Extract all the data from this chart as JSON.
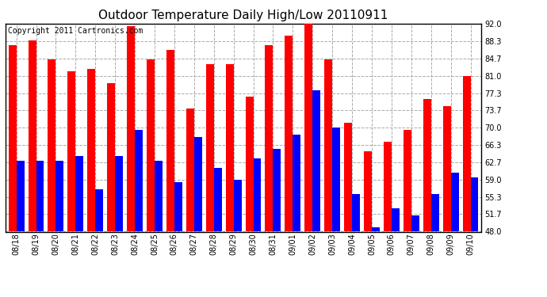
{
  "title": "Outdoor Temperature Daily High/Low 20110911",
  "copyright": "Copyright 2011 Cartronics.com",
  "dates": [
    "08/18",
    "08/19",
    "08/20",
    "08/21",
    "08/22",
    "08/23",
    "08/24",
    "08/25",
    "08/26",
    "08/27",
    "08/28",
    "08/29",
    "08/30",
    "08/31",
    "09/01",
    "09/02",
    "09/03",
    "09/04",
    "09/05",
    "09/06",
    "09/07",
    "09/08",
    "09/09",
    "09/10"
  ],
  "highs": [
    87.5,
    88.5,
    84.5,
    82.0,
    82.5,
    79.5,
    91.5,
    84.5,
    86.5,
    74.0,
    83.5,
    83.5,
    76.5,
    87.5,
    89.5,
    92.0,
    84.5,
    71.0,
    65.0,
    67.0,
    69.5,
    76.0,
    74.5,
    81.0
  ],
  "lows": [
    63.0,
    63.0,
    63.0,
    64.0,
    57.0,
    64.0,
    69.5,
    63.0,
    58.5,
    68.0,
    61.5,
    59.0,
    63.5,
    65.5,
    68.5,
    78.0,
    70.0,
    56.0,
    49.0,
    53.0,
    51.5,
    56.0,
    60.5,
    59.5
  ],
  "high_color": "#ff0000",
  "low_color": "#0000ff",
  "bg_color": "#ffffff",
  "grid_color": "#aaaaaa",
  "title_fontsize": 11,
  "copyright_fontsize": 7,
  "yticks": [
    48.0,
    51.7,
    55.3,
    59.0,
    62.7,
    66.3,
    70.0,
    73.7,
    77.3,
    81.0,
    84.7,
    88.3,
    92.0
  ],
  "ymin": 48.0,
  "ymax": 92.0,
  "bar_width": 0.4
}
